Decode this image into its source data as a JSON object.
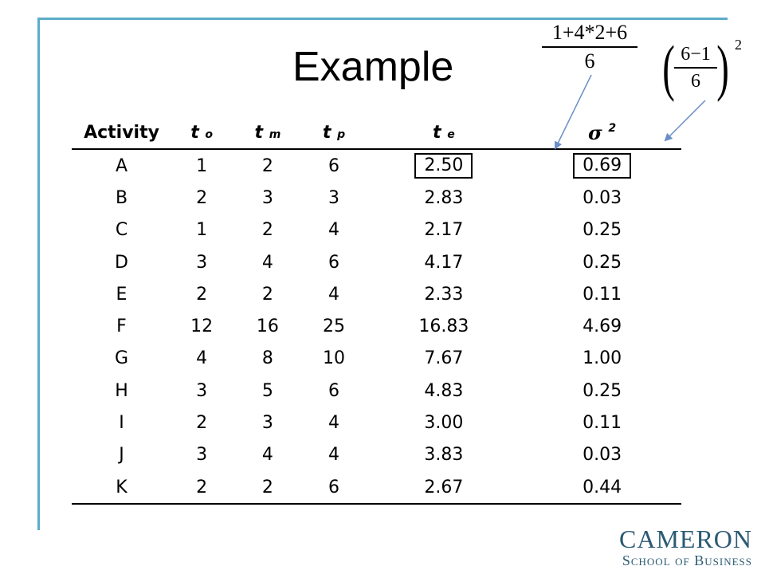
{
  "slide": {
    "title": "Example",
    "formula_te": {
      "numerator": "1+4*2+6",
      "denominator": "6"
    },
    "formula_var": {
      "numerator": "6−1",
      "denominator": "6",
      "exponent": "2"
    }
  },
  "table": {
    "headers": [
      {
        "main": "Activity",
        "sub": ""
      },
      {
        "main": "t",
        "sub": "o"
      },
      {
        "main": "t",
        "sub": "m"
      },
      {
        "main": "t",
        "sub": "p"
      },
      {
        "main": "t",
        "sub": "e"
      },
      {
        "main": "σ",
        "sub": "2"
      }
    ],
    "rows": [
      [
        "A",
        "1",
        "2",
        "6",
        "2.50",
        "0.69"
      ],
      [
        "B",
        "2",
        "3",
        "3",
        "2.83",
        "0.03"
      ],
      [
        "C",
        "1",
        "2",
        "4",
        "2.17",
        "0.25"
      ],
      [
        "D",
        "3",
        "4",
        "6",
        "4.17",
        "0.25"
      ],
      [
        "E",
        "2",
        "2",
        "4",
        "2.33",
        "0.11"
      ],
      [
        "F",
        "12",
        "16",
        "25",
        "16.83",
        "4.69"
      ],
      [
        "G",
        "4",
        "8",
        "10",
        "7.67",
        "1.00"
      ],
      [
        "H",
        "3",
        "5",
        "6",
        "4.83",
        "0.25"
      ],
      [
        "I",
        "2",
        "3",
        "4",
        "3.00",
        "0.11"
      ],
      [
        "J",
        "3",
        "4",
        "4",
        "3.83",
        "0.03"
      ],
      [
        "K",
        "2",
        "2",
        "6",
        "2.67",
        "0.44"
      ]
    ]
  },
  "logo": {
    "line1": "CAMERON",
    "line2": "School of Business"
  },
  "colors": {
    "frame": "#5badc9",
    "logo": "#2b5a74",
    "arrow": "#6a8fc7"
  }
}
